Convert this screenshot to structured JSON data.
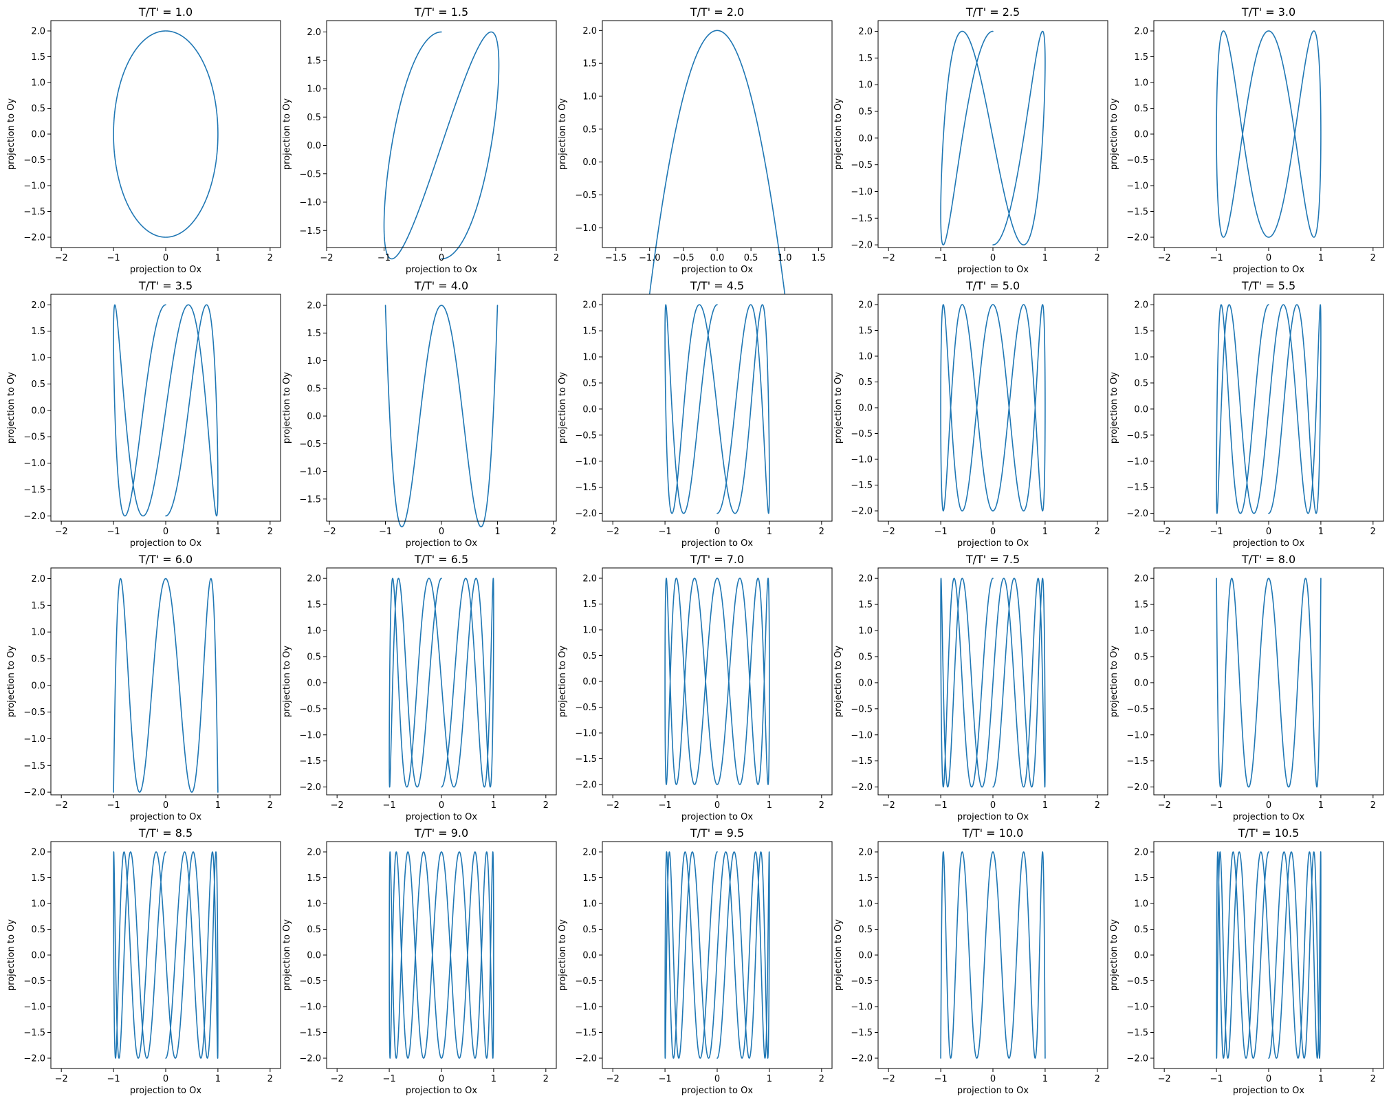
{
  "figure": {
    "line_color": "#1f77b4"
  },
  "chart_data": [
    {
      "type": "line",
      "title": "T/T' = 1.0",
      "xlabel": "projection to Ox",
      "ylabel": "projection to Oy",
      "x_function": "-sin(t)",
      "y_function": "2*cos(1.0*t)",
      "t_range": [
        0,
        6.283
      ],
      "xlim": [
        -2.2,
        2.2
      ],
      "ylim": [
        -2.2,
        2.2
      ],
      "xticks": [
        -2,
        -1,
        0,
        1,
        2
      ],
      "yticks": [
        -2.0,
        -1.5,
        -1.0,
        -0.5,
        0.0,
        0.5,
        1.0,
        1.5,
        2.0
      ],
      "grid": false
    },
    {
      "type": "line",
      "title": "T/T' = 1.5",
      "xlabel": "projection to Ox",
      "ylabel": "projection to Oy",
      "x_function": "-sin(t)",
      "y_function": "2*cos(1.5*t)",
      "t_range": [
        0,
        6.283
      ],
      "xlim": [
        -2.0,
        2.0
      ],
      "ylim": [
        -1.8,
        2.2
      ],
      "xticks": [
        -2,
        -1,
        0,
        1,
        2
      ],
      "yticks": [
        -1.5,
        -1.0,
        -0.5,
        0.0,
        0.5,
        1.0,
        1.5,
        2.0
      ],
      "grid": false
    },
    {
      "type": "line",
      "title": "T/T' = 2.0",
      "xlabel": "projection to Ox",
      "ylabel": "projection to Oy",
      "x_function": "-sin(t)",
      "y_function": "2*cos(2.0*t)",
      "t_range": [
        0,
        6.283
      ],
      "xlim": [
        -1.7,
        1.7
      ],
      "ylim": [
        -1.3,
        2.15
      ],
      "xticks": [
        -1.5,
        -1.0,
        -0.5,
        0.0,
        0.5,
        1.0,
        1.5
      ],
      "yticks": [
        -1.0,
        -0.5,
        0.0,
        0.5,
        1.0,
        1.5,
        2.0
      ],
      "grid": false
    },
    {
      "type": "line",
      "title": "T/T' = 2.5",
      "xlabel": "projection to Ox",
      "ylabel": "projection to Oy",
      "x_function": "-sin(t)",
      "y_function": "2*cos(2.5*t)",
      "t_range": [
        0,
        6.283
      ],
      "xlim": [
        -2.2,
        2.2
      ],
      "ylim": [
        -2.05,
        2.2
      ],
      "xticks": [
        -2,
        -1,
        0,
        1,
        2
      ],
      "yticks": [
        -2.0,
        -1.5,
        -1.0,
        -0.5,
        0.0,
        0.5,
        1.0,
        1.5,
        2.0
      ],
      "grid": false
    },
    {
      "type": "line",
      "title": "T/T' = 3.0",
      "xlabel": "projection to Ox",
      "ylabel": "projection to Oy",
      "x_function": "-sin(t)",
      "y_function": "2*cos(3.0*t)",
      "t_range": [
        0,
        6.283
      ],
      "xlim": [
        -2.2,
        2.2
      ],
      "ylim": [
        -2.2,
        2.2
      ],
      "xticks": [
        -2,
        -1,
        0,
        1,
        2
      ],
      "yticks": [
        -2.0,
        -1.5,
        -1.0,
        -0.5,
        0.0,
        0.5,
        1.0,
        1.5,
        2.0
      ],
      "grid": false
    },
    {
      "type": "line",
      "title": "T/T' = 3.5",
      "xlabel": "projection to Ox",
      "ylabel": "projection to Oy",
      "x_function": "-sin(t)",
      "y_function": "2*cos(3.5*t)",
      "t_range": [
        0,
        6.283
      ],
      "xlim": [
        -2.2,
        2.2
      ],
      "ylim": [
        -2.1,
        2.2
      ],
      "xticks": [
        -2,
        -1,
        0,
        1,
        2
      ],
      "yticks": [
        -2.0,
        -1.5,
        -1.0,
        -0.5,
        0.0,
        0.5,
        1.0,
        1.5,
        2.0
      ],
      "grid": false
    },
    {
      "type": "line",
      "title": "T/T' = 4.0",
      "xlabel": "projection to Ox",
      "ylabel": "projection to Oy",
      "x_function": "-sin(t)",
      "y_function": "2*cos(4.0*t)",
      "t_range": [
        0,
        6.283
      ],
      "xlim": [
        -2.05,
        2.05
      ],
      "ylim": [
        -1.9,
        2.2
      ],
      "xticks": [
        -2,
        -1,
        0,
        1,
        2
      ],
      "yticks": [
        -1.5,
        -1.0,
        -0.5,
        0.0,
        0.5,
        1.0,
        1.5,
        2.0
      ],
      "grid": false
    },
    {
      "type": "line",
      "title": "T/T' = 4.5",
      "xlabel": "projection to Ox",
      "ylabel": "projection to Oy",
      "x_function": "-sin(t)",
      "y_function": "2*cos(4.5*t)",
      "t_range": [
        0,
        6.283
      ],
      "xlim": [
        -2.2,
        2.2
      ],
      "ylim": [
        -2.15,
        2.2
      ],
      "xticks": [
        -2,
        -1,
        0,
        1,
        2
      ],
      "yticks": [
        -2.0,
        -1.5,
        -1.0,
        -0.5,
        0.0,
        0.5,
        1.0,
        1.5,
        2.0
      ],
      "grid": false
    },
    {
      "type": "line",
      "title": "T/T' = 5.0",
      "xlabel": "projection to Ox",
      "ylabel": "projection to Oy",
      "x_function": "-sin(t)",
      "y_function": "2*cos(5.0*t)",
      "t_range": [
        0,
        6.283
      ],
      "xlim": [
        -2.2,
        2.2
      ],
      "ylim": [
        -2.2,
        2.2
      ],
      "xticks": [
        -2,
        -1,
        0,
        1,
        2
      ],
      "yticks": [
        -2.0,
        -1.5,
        -1.0,
        -0.5,
        0.0,
        0.5,
        1.0,
        1.5,
        2.0
      ],
      "grid": false
    },
    {
      "type": "line",
      "title": "T/T' = 5.5",
      "xlabel": "projection to Ox",
      "ylabel": "projection to Oy",
      "x_function": "-sin(t)",
      "y_function": "2*cos(5.5*t)",
      "t_range": [
        0,
        6.283
      ],
      "xlim": [
        -2.2,
        2.2
      ],
      "ylim": [
        -2.15,
        2.2
      ],
      "xticks": [
        -2,
        -1,
        0,
        1,
        2
      ],
      "yticks": [
        -2.0,
        -1.5,
        -1.0,
        -0.5,
        0.0,
        0.5,
        1.0,
        1.5,
        2.0
      ],
      "grid": false
    },
    {
      "type": "line",
      "title": "T/T' = 6.0",
      "xlabel": "projection to Ox",
      "ylabel": "projection to Oy",
      "x_function": "-sin(t)",
      "y_function": "2*cos(6.0*t)",
      "t_range": [
        0,
        6.283
      ],
      "xlim": [
        -2.2,
        2.2
      ],
      "ylim": [
        -2.05,
        2.2
      ],
      "xticks": [
        -2,
        -1,
        0,
        1,
        2
      ],
      "yticks": [
        -2.0,
        -1.5,
        -1.0,
        -0.5,
        0.0,
        0.5,
        1.0,
        1.5,
        2.0
      ],
      "grid": false
    },
    {
      "type": "line",
      "title": "T/T' = 6.5",
      "xlabel": "projection to Ox",
      "ylabel": "projection to Oy",
      "x_function": "-sin(t)",
      "y_function": "2*cos(6.5*t)",
      "t_range": [
        0,
        6.283
      ],
      "xlim": [
        -2.2,
        2.2
      ],
      "ylim": [
        -2.15,
        2.2
      ],
      "xticks": [
        -2,
        -1,
        0,
        1,
        2
      ],
      "yticks": [
        -2.0,
        -1.5,
        -1.0,
        -0.5,
        0.0,
        0.5,
        1.0,
        1.5,
        2.0
      ],
      "grid": false
    },
    {
      "type": "line",
      "title": "T/T' = 7.0",
      "xlabel": "projection to Ox",
      "ylabel": "projection to Oy",
      "x_function": "-sin(t)",
      "y_function": "2*cos(7.0*t)",
      "t_range": [
        0,
        6.283
      ],
      "xlim": [
        -2.2,
        2.2
      ],
      "ylim": [
        -2.2,
        2.2
      ],
      "xticks": [
        -2,
        -1,
        0,
        1,
        2
      ],
      "yticks": [
        -2.0,
        -1.5,
        -1.0,
        -0.5,
        0.0,
        0.5,
        1.0,
        1.5,
        2.0
      ],
      "grid": false
    },
    {
      "type": "line",
      "title": "T/T' = 7.5",
      "xlabel": "projection to Ox",
      "ylabel": "projection to Oy",
      "x_function": "-sin(t)",
      "y_function": "2*cos(7.5*t)",
      "t_range": [
        0,
        6.283
      ],
      "xlim": [
        -2.2,
        2.2
      ],
      "ylim": [
        -2.15,
        2.2
      ],
      "xticks": [
        -2,
        -1,
        0,
        1,
        2
      ],
      "yticks": [
        -2.0,
        -1.5,
        -1.0,
        -0.5,
        0.0,
        0.5,
        1.0,
        1.5,
        2.0
      ],
      "grid": false
    },
    {
      "type": "line",
      "title": "T/T' = 8.0",
      "xlabel": "projection to Ox",
      "ylabel": "projection to Oy",
      "x_function": "-sin(t)",
      "y_function": "2*cos(8.0*t)",
      "t_range": [
        0,
        6.283
      ],
      "xlim": [
        -2.2,
        2.2
      ],
      "ylim": [
        -2.15,
        2.2
      ],
      "xticks": [
        -2,
        -1,
        0,
        1,
        2
      ],
      "yticks": [
        -2.0,
        -1.5,
        -1.0,
        -0.5,
        0.0,
        0.5,
        1.0,
        1.5,
        2.0
      ],
      "grid": false
    },
    {
      "type": "line",
      "title": "T/T' = 8.5",
      "xlabel": "projection to Ox",
      "ylabel": "projection to Oy",
      "x_function": "-sin(t)",
      "y_function": "2*cos(8.5*t)",
      "t_range": [
        0,
        6.283
      ],
      "xlim": [
        -2.2,
        2.2
      ],
      "ylim": [
        -2.2,
        2.2
      ],
      "xticks": [
        -2,
        -1,
        0,
        1,
        2
      ],
      "yticks": [
        -2.0,
        -1.5,
        -1.0,
        -0.5,
        0.0,
        0.5,
        1.0,
        1.5,
        2.0
      ],
      "grid": false
    },
    {
      "type": "line",
      "title": "T/T' = 9.0",
      "xlabel": "projection to Ox",
      "ylabel": "projection to Oy",
      "x_function": "-sin(t)",
      "y_function": "2*cos(9.0*t)",
      "t_range": [
        0,
        6.283
      ],
      "xlim": [
        -2.2,
        2.2
      ],
      "ylim": [
        -2.2,
        2.2
      ],
      "xticks": [
        -2,
        -1,
        0,
        1,
        2
      ],
      "yticks": [
        -2.0,
        -1.5,
        -1.0,
        -0.5,
        0.0,
        0.5,
        1.0,
        1.5,
        2.0
      ],
      "grid": false
    },
    {
      "type": "line",
      "title": "T/T' = 9.5",
      "xlabel": "projection to Ox",
      "ylabel": "projection to Oy",
      "x_function": "-sin(t)",
      "y_function": "2*cos(9.5*t)",
      "t_range": [
        0,
        6.283
      ],
      "xlim": [
        -2.2,
        2.2
      ],
      "ylim": [
        -2.2,
        2.2
      ],
      "xticks": [
        -2,
        -1,
        0,
        1,
        2
      ],
      "yticks": [
        -2.0,
        -1.5,
        -1.0,
        -0.5,
        0.0,
        0.5,
        1.0,
        1.5,
        2.0
      ],
      "grid": false
    },
    {
      "type": "line",
      "title": "T/T' = 10.0",
      "xlabel": "projection to Ox",
      "ylabel": "projection to Oy",
      "x_function": "-sin(t)",
      "y_function": "2*cos(10.0*t)",
      "t_range": [
        0,
        6.283
      ],
      "xlim": [
        -2.2,
        2.2
      ],
      "ylim": [
        -2.2,
        2.2
      ],
      "xticks": [
        -2,
        -1,
        0,
        1,
        2
      ],
      "yticks": [
        -2.0,
        -1.5,
        -1.0,
        -0.5,
        0.0,
        0.5,
        1.0,
        1.5,
        2.0
      ],
      "grid": false
    },
    {
      "type": "line",
      "title": "T/T' = 10.5",
      "xlabel": "projection to Ox",
      "ylabel": "projection to Oy",
      "x_function": "-sin(t)",
      "y_function": "2*cos(10.5*t)",
      "t_range": [
        0,
        6.283
      ],
      "xlim": [
        -2.2,
        2.2
      ],
      "ylim": [
        -2.2,
        2.2
      ],
      "xticks": [
        -2,
        -1,
        0,
        1,
        2
      ],
      "yticks": [
        -2.0,
        -1.5,
        -1.0,
        -0.5,
        0.0,
        0.5,
        1.0,
        1.5,
        2.0
      ],
      "grid": false
    }
  ]
}
